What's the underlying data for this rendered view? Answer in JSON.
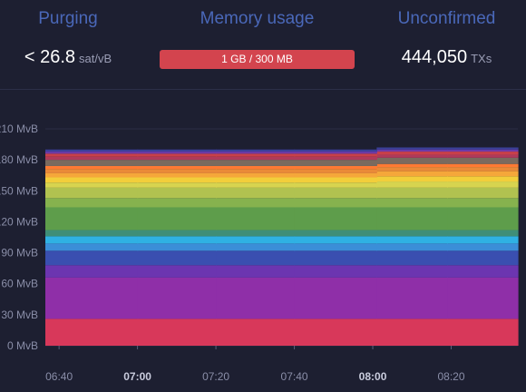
{
  "stats": {
    "purging": {
      "label": "Purging",
      "value": "< 26.8",
      "unit": "sat/vB"
    },
    "memory": {
      "label": "Memory usage",
      "bar_text": "1 GB / 300 MB",
      "bar_color": "#d3444e"
    },
    "unconfirmed": {
      "label": "Unconfirmed",
      "value": "444,050",
      "unit": "TXs"
    }
  },
  "colors": {
    "background": "#1d1f31",
    "label": "#4a68b9",
    "axis_text": "#8a8ea8"
  },
  "chart_data": {
    "type": "area",
    "stacked": true,
    "ylim": [
      0,
      210
    ],
    "y_ticks": [
      {
        "value": 0,
        "label": "0 MvB"
      },
      {
        "value": 30,
        "label": "30 MvB"
      },
      {
        "value": 60,
        "label": "60 MvB"
      },
      {
        "value": 90,
        "label": "90 MvB"
      },
      {
        "value": 120,
        "label": "120 MvB"
      },
      {
        "value": 150,
        "label": "150 MvB"
      },
      {
        "value": 180,
        "label": "180 MvB"
      },
      {
        "value": 210,
        "label": "210 MvB"
      }
    ],
    "x_ticks": [
      {
        "minutes": 0,
        "label": "06:40",
        "bold": false
      },
      {
        "minutes": 20,
        "label": "07:00",
        "bold": true
      },
      {
        "minutes": 40,
        "label": "07:20",
        "bold": false
      },
      {
        "minutes": 60,
        "label": "07:40",
        "bold": false
      },
      {
        "minutes": 80,
        "label": "08:00",
        "bold": true
      },
      {
        "minutes": 100,
        "label": "08:20",
        "bold": false
      }
    ],
    "x_range_minutes": [
      -3.5,
      117
    ],
    "segments_x_minutes": [
      -3.5,
      20,
      40,
      60,
      81,
      99,
      117
    ],
    "layers": [
      {
        "color": "#d8385a",
        "values": [
          26,
          26,
          26,
          26,
          26,
          26
        ]
      },
      {
        "color": "#8f2fa8",
        "values": [
          40,
          40,
          40,
          40,
          40,
          40
        ]
      },
      {
        "color": "#6c35b0",
        "values": [
          12,
          12,
          12,
          12,
          12,
          12
        ]
      },
      {
        "color": "#3a4fb0",
        "values": [
          14,
          14,
          14,
          14,
          14,
          14
        ]
      },
      {
        "color": "#3b8ed8",
        "values": [
          7,
          7,
          7,
          7,
          7,
          7
        ]
      },
      {
        "color": "#2fb1e3",
        "values": [
          7,
          7,
          7,
          7,
          7,
          7
        ]
      },
      {
        "color": "#3f8e77",
        "values": [
          6,
          6,
          6,
          6,
          6,
          6
        ]
      },
      {
        "color": "#5e9d4b",
        "values": [
          22,
          22,
          22,
          22,
          22,
          22
        ]
      },
      {
        "color": "#86b24e",
        "values": [
          9,
          9,
          9,
          9,
          9,
          9
        ]
      },
      {
        "color": "#b1c250",
        "values": [
          10,
          10,
          10,
          10,
          10,
          10
        ]
      },
      {
        "color": "#d7d44f",
        "values": [
          5,
          5,
          5,
          5,
          6,
          6
        ]
      },
      {
        "color": "#f2ce3b",
        "values": [
          5,
          5,
          5,
          5,
          5,
          5
        ]
      },
      {
        "color": "#f5a73a",
        "values": [
          4,
          4,
          4,
          4,
          5,
          5
        ]
      },
      {
        "color": "#e98a38",
        "values": [
          4,
          4,
          4,
          4,
          4,
          4
        ]
      },
      {
        "color": "#ff7a33",
        "values": [
          3,
          3,
          3,
          3,
          3,
          3
        ]
      },
      {
        "color": "#7a6a5e",
        "values": [
          6,
          6,
          6,
          6,
          6,
          6
        ]
      },
      {
        "color": "#b03a5a",
        "values": [
          3,
          3,
          3,
          3,
          3,
          3
        ]
      },
      {
        "color": "#c8404a",
        "values": [
          3,
          3,
          3,
          3,
          3,
          3
        ]
      },
      {
        "color": "#6e3aa8",
        "values": [
          2,
          2,
          2,
          2,
          2,
          2
        ]
      },
      {
        "color": "#3b3f9a",
        "values": [
          2,
          2,
          2,
          2,
          2,
          2
        ]
      }
    ]
  }
}
